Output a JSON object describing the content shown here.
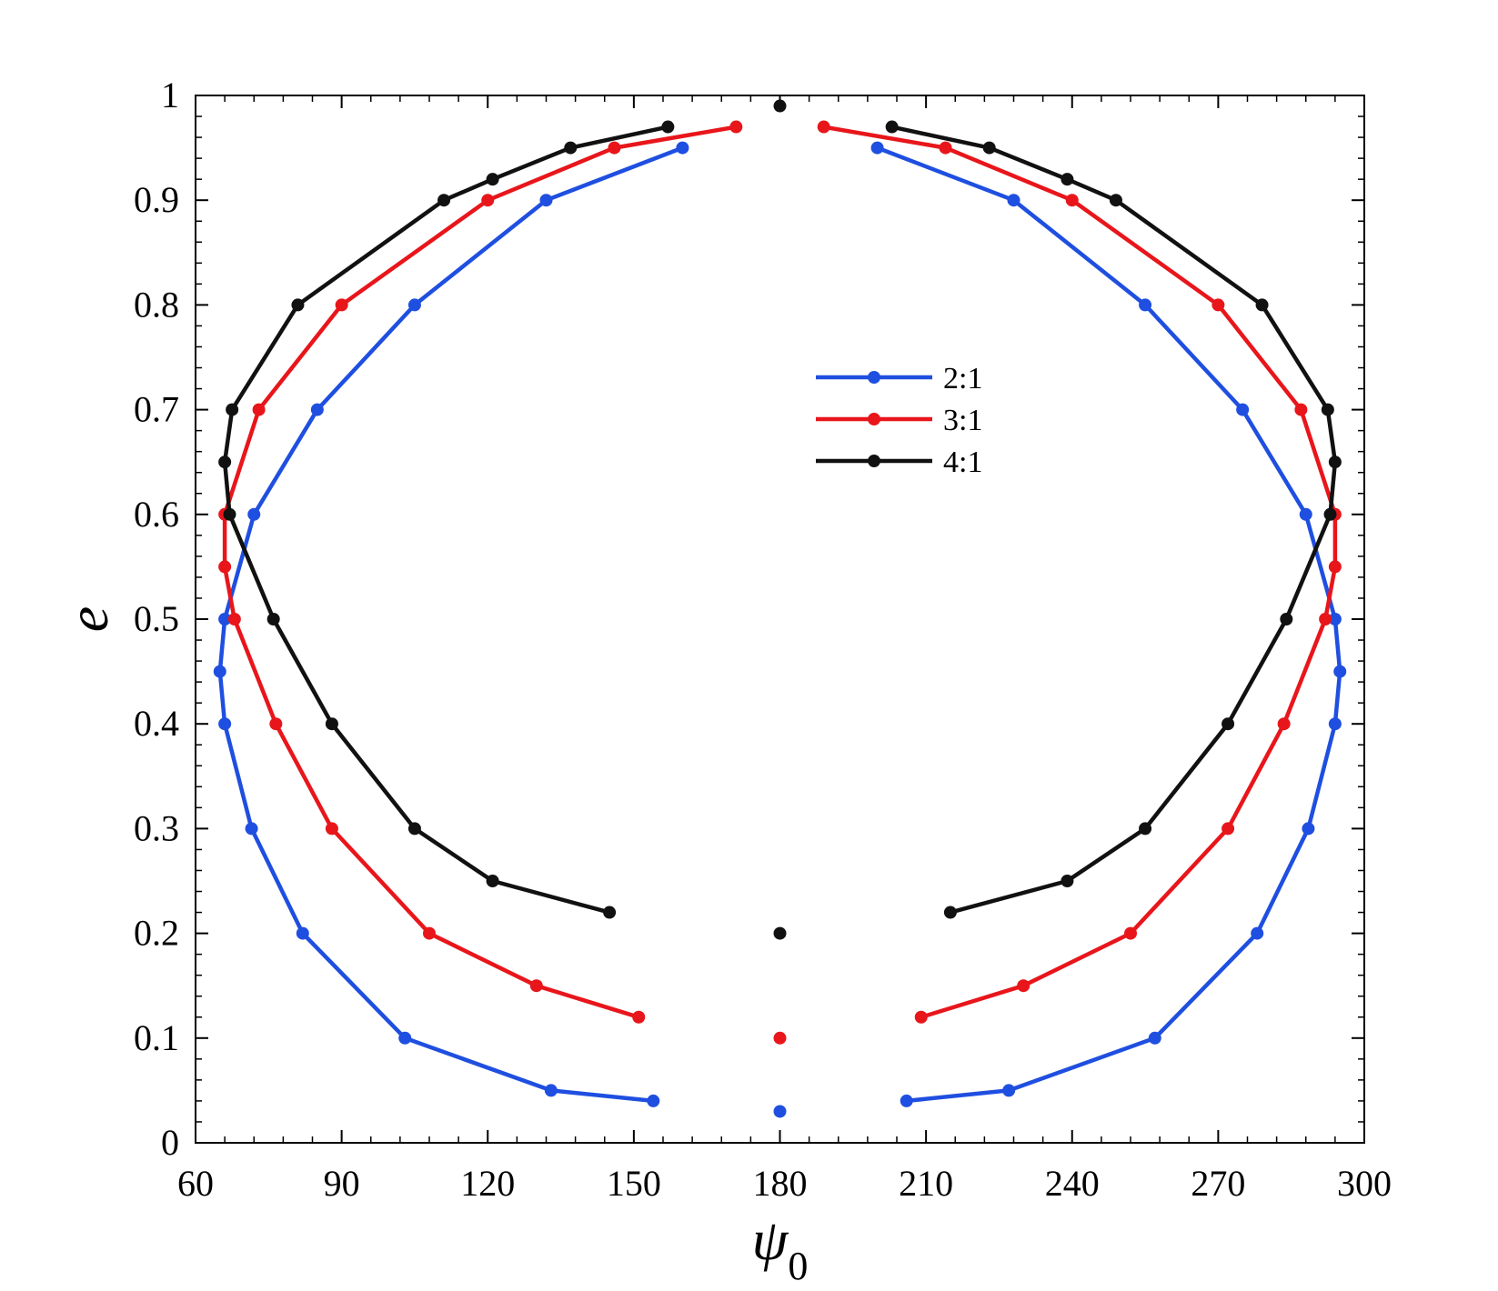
{
  "chart_data": {
    "type": "line",
    "title": "",
    "xlabel": "ψ",
    "xlabel_subscript": "0",
    "ylabel": "e",
    "xlim": [
      60,
      300
    ],
    "ylim": [
      0,
      1
    ],
    "xticks": [
      60,
      90,
      120,
      150,
      180,
      210,
      240,
      270,
      300
    ],
    "yticks": [
      0,
      0.1,
      0.2,
      0.3,
      0.4,
      0.5,
      0.6,
      0.7,
      0.8,
      0.9,
      1
    ],
    "xtick_labels": [
      "60",
      "90",
      "120",
      "150",
      "180",
      "210",
      "240",
      "270",
      "300"
    ],
    "ytick_labels": [
      "0",
      "0.1",
      "0.2",
      "0.3",
      "0.4",
      "0.5",
      "0.6",
      "0.7",
      "0.8",
      "0.9",
      "1"
    ],
    "grid": false,
    "legend_position": "center",
    "series": [
      {
        "name": "2:1",
        "color": "#1f4fe0",
        "segments": [
          [
            [
              154,
              0.04
            ],
            [
              133,
              0.05
            ],
            [
              103,
              0.1
            ],
            [
              82,
              0.2
            ],
            [
              71.5,
              0.3
            ],
            [
              66,
              0.4
            ],
            [
              65,
              0.45
            ],
            [
              66,
              0.5
            ],
            [
              72,
              0.6
            ],
            [
              85,
              0.7
            ],
            [
              105,
              0.8
            ],
            [
              132,
              0.9
            ],
            [
              160,
              0.95
            ]
          ],
          [
            [
              206,
              0.04
            ],
            [
              227,
              0.05
            ],
            [
              257,
              0.1
            ],
            [
              278,
              0.2
            ],
            [
              288.5,
              0.3
            ],
            [
              294,
              0.4
            ],
            [
              295,
              0.45
            ],
            [
              294,
              0.5
            ],
            [
              288,
              0.6
            ],
            [
              275,
              0.7
            ],
            [
              255,
              0.8
            ],
            [
              228,
              0.9
            ],
            [
              200,
              0.95
            ]
          ]
        ],
        "isolated": [
          [
            180,
            0.03
          ]
        ]
      },
      {
        "name": "3:1",
        "color": "#e8161b",
        "segments": [
          [
            [
              151,
              0.12
            ],
            [
              130,
              0.15
            ],
            [
              108,
              0.2
            ],
            [
              88,
              0.3
            ],
            [
              76.5,
              0.4
            ],
            [
              68,
              0.5
            ],
            [
              66,
              0.55
            ],
            [
              66,
              0.6
            ],
            [
              73,
              0.7
            ],
            [
              90,
              0.8
            ],
            [
              120,
              0.9
            ],
            [
              146,
              0.95
            ],
            [
              171,
              0.97
            ]
          ],
          [
            [
              209,
              0.12
            ],
            [
              230,
              0.15
            ],
            [
              252,
              0.2
            ],
            [
              272,
              0.3
            ],
            [
              283.5,
              0.4
            ],
            [
              292,
              0.5
            ],
            [
              294,
              0.55
            ],
            [
              294,
              0.6
            ],
            [
              287,
              0.7
            ],
            [
              270,
              0.8
            ],
            [
              240,
              0.9
            ],
            [
              214,
              0.95
            ],
            [
              189,
              0.97
            ]
          ]
        ],
        "isolated": [
          [
            180,
            0.1
          ]
        ]
      },
      {
        "name": "4:1",
        "color": "#111111",
        "segments": [
          [
            [
              145,
              0.22
            ],
            [
              121,
              0.25
            ],
            [
              105,
              0.3
            ],
            [
              88,
              0.4
            ],
            [
              76,
              0.5
            ],
            [
              67,
              0.6
            ],
            [
              66,
              0.65
            ],
            [
              67.5,
              0.7
            ],
            [
              81,
              0.8
            ],
            [
              111,
              0.9
            ],
            [
              121,
              0.92
            ],
            [
              137,
              0.95
            ],
            [
              157,
              0.97
            ]
          ],
          [
            [
              215,
              0.22
            ],
            [
              239,
              0.25
            ],
            [
              255,
              0.3
            ],
            [
              272,
              0.4
            ],
            [
              284,
              0.5
            ],
            [
              293,
              0.6
            ],
            [
              294,
              0.65
            ],
            [
              292.5,
              0.7
            ],
            [
              279,
              0.8
            ],
            [
              249,
              0.9
            ],
            [
              239,
              0.92
            ],
            [
              223,
              0.95
            ],
            [
              203,
              0.97
            ]
          ]
        ],
        "isolated": [
          [
            180,
            0.2
          ],
          [
            180,
            0.99
          ]
        ]
      }
    ]
  }
}
